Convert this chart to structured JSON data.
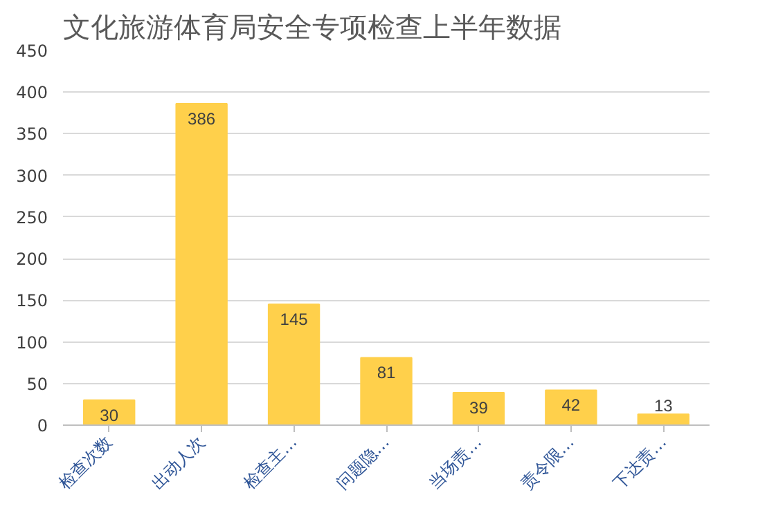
{
  "chart_data": {
    "type": "bar",
    "title": "文化旅游体育局安全专项检查上半年数据",
    "categories": [
      "检查次数",
      "出动人次",
      "检查主…",
      "问题隐…",
      "当场责…",
      "责令限…",
      "下达责…"
    ],
    "values": [
      30,
      386,
      145,
      81,
      39,
      42,
      13
    ],
    "color": "#ffd04b",
    "ylim": [
      0,
      450
    ],
    "yticks": [
      0,
      50,
      100,
      150,
      200,
      250,
      300,
      350,
      400,
      450
    ],
    "grid": "y",
    "data_labels": true
  }
}
